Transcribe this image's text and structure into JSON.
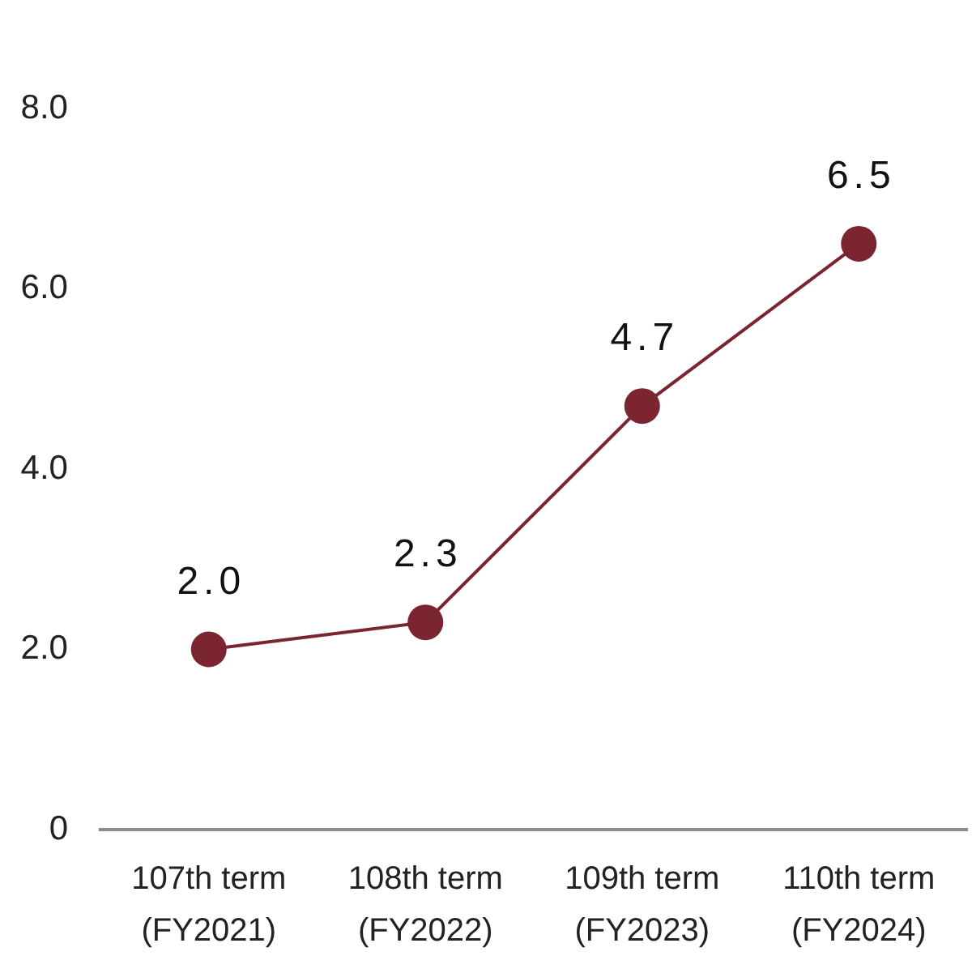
{
  "chart_data": {
    "type": "line",
    "categories": [
      "107th term\n(FY2021)",
      "108th term\n(FY2022)",
      "109th term\n(FY2023)",
      "110th term\n(FY2024)"
    ],
    "series": [
      {
        "color": "#7a2530",
        "values": [
          2.0,
          2.3,
          4.7,
          6.5
        ],
        "value_labels": [
          "2.0",
          "2.3",
          "4.7",
          "6.5"
        ]
      }
    ],
    "ylim": [
      0,
      8
    ],
    "yticks": [
      0,
      {
        "value": 2,
        "label": "2.0"
      },
      {
        "value": 4,
        "label": "4.0"
      },
      {
        "value": 6,
        "label": "6.0"
      },
      {
        "value": 8,
        "label": "8.0"
      }
    ],
    "grid": false,
    "legend": false,
    "marker": "circle",
    "line_style": "solid"
  }
}
